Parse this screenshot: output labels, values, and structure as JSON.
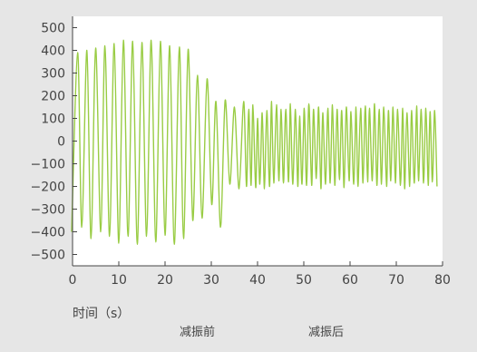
{
  "chart_data": {
    "type": "line",
    "title": "",
    "xlabel": "时间（s）",
    "ylabel": "",
    "xlim": [
      0,
      80
    ],
    "ylim": [
      -550,
      550
    ],
    "x_ticks": [
      0,
      10,
      20,
      30,
      40,
      50,
      60,
      70,
      80
    ],
    "y_ticks": [
      500,
      400,
      300,
      200,
      100,
      0,
      -100,
      -200,
      -300,
      -400,
      -500
    ],
    "tick_labels_x": [
      "0",
      "10",
      "20",
      "30",
      "40",
      "50",
      "60",
      "70",
      "80"
    ],
    "tick_labels_y": [
      "500",
      "400",
      "300",
      "200",
      "100",
      "0",
      "−100",
      "−200",
      "−300",
      "−400",
      "−500"
    ],
    "grid": false,
    "colors": {
      "line": "#99cc44",
      "plot_bg": "#ffffff",
      "page_bg": "#e6e6e6",
      "axis": "#444444",
      "text": "#444444"
    },
    "annotations": [
      "减振前",
      "减振后"
    ],
    "series": [
      {
        "x": [
          -0.2,
          1.1,
          2.0,
          3.1,
          4.0,
          5.0,
          6.1,
          7.0,
          8.0,
          9.0,
          10.0,
          11.0,
          12.0,
          13.0,
          14.0,
          15.0,
          16.0,
          17.0,
          18.0,
          19.0,
          20.0,
          21.0,
          22.0,
          23.1,
          24.0,
          25.0,
          26.0,
          27.0,
          28.0,
          29.1,
          30.1,
          31.0,
          32.0,
          33.0,
          34.0,
          35.0,
          36.0,
          37.0,
          37.6,
          38.1,
          38.6,
          39.0,
          39.6,
          40.0,
          40.5,
          41.0,
          41.5,
          42.0,
          42.6,
          43.0,
          43.5,
          44.1,
          44.6,
          45.1,
          45.6,
          46.1,
          46.7,
          47.1,
          47.6,
          48.2,
          48.7,
          49.1,
          49.6,
          50.1,
          50.6,
          51.1,
          51.7,
          52.1,
          52.7,
          53.2,
          53.7,
          54.1,
          54.7,
          55.2,
          55.7,
          56.2,
          56.7,
          57.2,
          57.7,
          58.2,
          58.7,
          59.2,
          59.8,
          60.2,
          60.8,
          61.3,
          61.7,
          62.3,
          62.8,
          63.3,
          63.8,
          64.2,
          64.8,
          65.3,
          65.8,
          66.3,
          66.8,
          67.3,
          67.9,
          68.3,
          68.8,
          69.3,
          69.8,
          70.3,
          70.9,
          71.4,
          71.8,
          72.3,
          72.9,
          73.3,
          73.9,
          74.4,
          74.8,
          75.4,
          75.9,
          76.4,
          76.9,
          77.3,
          77.8,
          78.3,
          78.8
        ],
        "y": [
          -400,
          390,
          -380,
          400,
          -430,
          410,
          -400,
          420,
          -420,
          430,
          -450,
          445,
          -420,
          440,
          -455,
          435,
          -420,
          445,
          -445,
          440,
          -415,
          420,
          -455,
          415,
          -430,
          405,
          -350,
          290,
          -340,
          275,
          -280,
          175,
          -380,
          180,
          -190,
          150,
          -210,
          175,
          -200,
          140,
          -195,
          160,
          -205,
          100,
          -190,
          125,
          -210,
          135,
          -200,
          175,
          -185,
          160,
          -175,
          140,
          -185,
          140,
          -180,
          165,
          -190,
          140,
          -200,
          110,
          -190,
          145,
          -195,
          165,
          -195,
          140,
          -165,
          150,
          -210,
          125,
          -190,
          145,
          -185,
          160,
          -195,
          140,
          -170,
          135,
          -205,
          150,
          -175,
          130,
          -190,
          150,
          -200,
          145,
          -185,
          155,
          -180,
          145,
          -175,
          165,
          -195,
          140,
          -190,
          150,
          -200,
          135,
          -175,
          150,
          -185,
          140,
          -195,
          145,
          -210,
          125,
          -200,
          135,
          -185,
          155,
          -175,
          140,
          -185,
          145,
          -195,
          130,
          -180,
          135,
          -200
        ]
      }
    ]
  }
}
